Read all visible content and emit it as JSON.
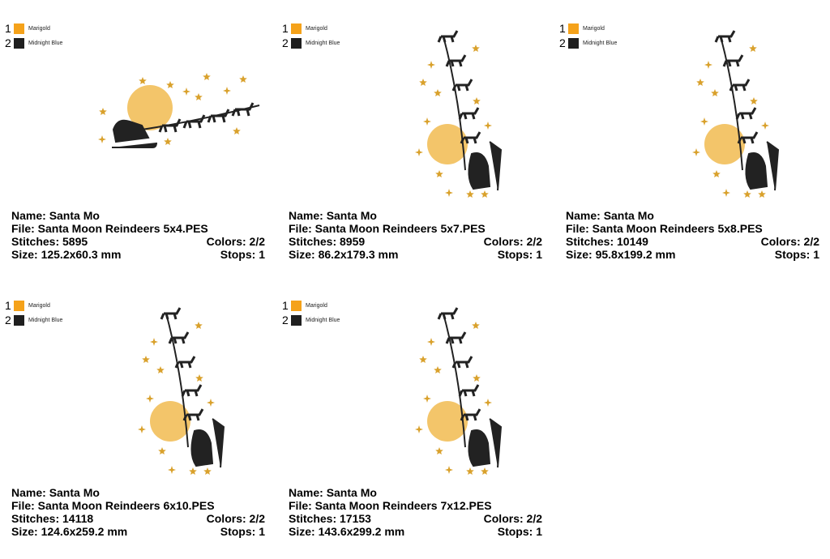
{
  "palette": [
    {
      "num": "1",
      "name": "Marigold",
      "color": "#f5a21a"
    },
    {
      "num": "2",
      "name": "Midnight Blue",
      "color": "#1f1f1f"
    }
  ],
  "labels": {
    "name": "Name:",
    "file": "File:",
    "stitches": "Stitches:",
    "colors": "Colors:",
    "size": "Size:",
    "stops": "Stops:"
  },
  "designs": [
    {
      "name": "Santa Mo",
      "file": "Santa Moon Reindeers 5x4.PES",
      "stitches": "5895",
      "colors": "2/2",
      "size": "125.2x60.3 mm",
      "stops": "1",
      "orientation": "horizontal"
    },
    {
      "name": "Santa Mo",
      "file": "Santa Moon Reindeers 5x7.PES",
      "stitches": "8959",
      "colors": "2/2",
      "size": "86.2x179.3 mm",
      "stops": "1",
      "orientation": "vertical"
    },
    {
      "name": "Santa Mo",
      "file": "Santa Moon Reindeers 5x8.PES",
      "stitches": "10149",
      "colors": "2/2",
      "size": "95.8x199.2 mm",
      "stops": "1",
      "orientation": "vertical"
    },
    {
      "name": "Santa Mo",
      "file": "Santa Moon Reindeers 6x10.PES",
      "stitches": "14118",
      "colors": "2/2",
      "size": "124.6x259.2 mm",
      "stops": "1",
      "orientation": "vertical"
    },
    {
      "name": "Santa Mo",
      "file": "Santa Moon Reindeers 7x12.PES",
      "stitches": "17153",
      "colors": "2/2",
      "size": "143.6x299.2 mm",
      "stops": "1",
      "orientation": "vertical"
    }
  ],
  "colors": {
    "moon": "#f3c56a",
    "star": "#d9a12c",
    "silhouette": "#222222"
  }
}
